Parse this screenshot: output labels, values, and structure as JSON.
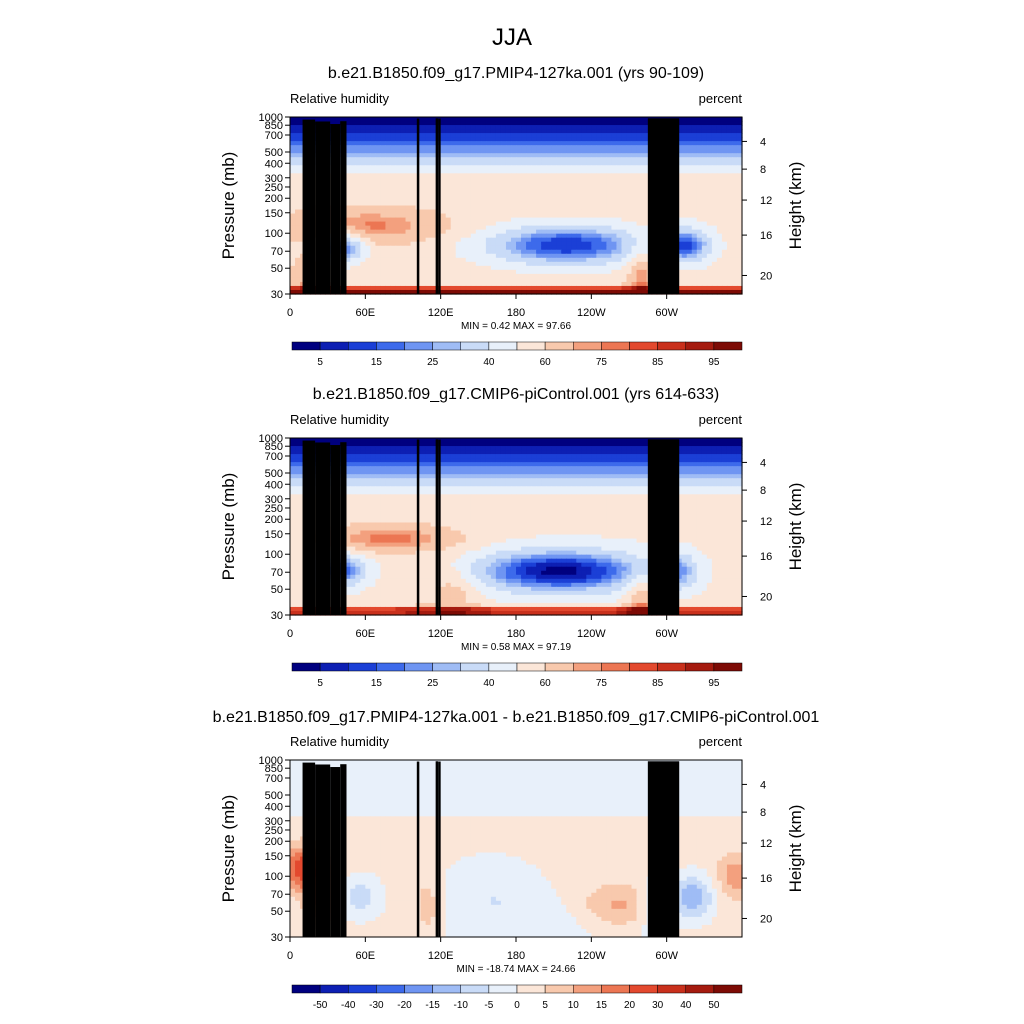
{
  "main_title": "JJA",
  "chart_data": [
    {
      "type": "heatmap",
      "title": "b.e21.B1850.f09_g17.PMIP4-127ka.001 (yrs 90-109)",
      "left_label": "Relative humidity",
      "right_label": "percent",
      "ylabel": "Pressure (mb)",
      "ylabel_right": "Height (km)",
      "xticks": [
        "0",
        "60E",
        "120E",
        "180",
        "120W",
        "60W"
      ],
      "pressure_ticks": [
        "30",
        "50",
        "70",
        "100",
        "150",
        "200",
        "250",
        "300",
        "400",
        "500",
        "700",
        "850",
        "1000"
      ],
      "height_ticks": [
        "20",
        "16",
        "12",
        "8",
        "4"
      ],
      "min_max_text": "MIN =   0.42  MAX =  97.66",
      "min": 0.42,
      "max": 97.66,
      "colorbar_labels": [
        "5",
        "15",
        "25",
        "40",
        "60",
        "75",
        "85",
        "95"
      ],
      "colors": [
        "#00007f",
        "#0d1fb3",
        "#1b3fd6",
        "#3d6aeb",
        "#6f95f2",
        "#9fbcf5",
        "#c9dbf7",
        "#e8f0fa",
        "#fbe6d8",
        "#f8c9ad",
        "#f3a07e",
        "#ec7653",
        "#e3492e",
        "#c9301c",
        "#a51b0f",
        "#7d0b05"
      ]
    },
    {
      "type": "heatmap",
      "title": "b.e21.B1850.f09_g17.CMIP6-piControl.001 (yrs 614-633)",
      "left_label": "Relative humidity",
      "right_label": "percent",
      "ylabel": "Pressure (mb)",
      "ylabel_right": "Height (km)",
      "xticks": [
        "0",
        "60E",
        "120E",
        "180",
        "120W",
        "60W"
      ],
      "pressure_ticks": [
        "30",
        "50",
        "70",
        "100",
        "150",
        "200",
        "250",
        "300",
        "400",
        "500",
        "700",
        "850",
        "1000"
      ],
      "height_ticks": [
        "20",
        "16",
        "12",
        "8",
        "4"
      ],
      "min_max_text": "MIN =   0.58  MAX =  97.19",
      "min": 0.58,
      "max": 97.19,
      "colorbar_labels": [
        "5",
        "15",
        "25",
        "40",
        "60",
        "75",
        "85",
        "95"
      ],
      "colors": [
        "#00007f",
        "#0d1fb3",
        "#1b3fd6",
        "#3d6aeb",
        "#6f95f2",
        "#9fbcf5",
        "#c9dbf7",
        "#e8f0fa",
        "#fbe6d8",
        "#f8c9ad",
        "#f3a07e",
        "#ec7653",
        "#e3492e",
        "#c9301c",
        "#a51b0f",
        "#7d0b05"
      ]
    },
    {
      "type": "heatmap",
      "title": "b.e21.B1850.f09_g17.PMIP4-127ka.001 - b.e21.B1850.f09_g17.CMIP6-piControl.001",
      "left_label": "Relative humidity",
      "right_label": "percent",
      "ylabel": "Pressure (mb)",
      "ylabel_right": "Height (km)",
      "xticks": [
        "0",
        "60E",
        "120E",
        "180",
        "120W",
        "60W"
      ],
      "pressure_ticks": [
        "30",
        "50",
        "70",
        "100",
        "150",
        "200",
        "250",
        "300",
        "400",
        "500",
        "700",
        "850",
        "1000"
      ],
      "height_ticks": [
        "20",
        "16",
        "12",
        "8",
        "4"
      ],
      "min_max_text": "MIN = -18.74  MAX =  24.66",
      "min": -18.74,
      "max": 24.66,
      "colorbar_labels": [
        "-50",
        "-40",
        "-30",
        "-20",
        "-15",
        "-10",
        "-5",
        "0",
        "5",
        "10",
        "15",
        "20",
        "30",
        "40",
        "50"
      ],
      "colors": [
        "#00007f",
        "#0d1fb3",
        "#1b3fd6",
        "#3d6aeb",
        "#6f95f2",
        "#9fbcf5",
        "#c9dbf7",
        "#e8f0fa",
        "#fbe6d8",
        "#f8c9ad",
        "#f3a07e",
        "#ec7653",
        "#e3492e",
        "#c9301c",
        "#a51b0f",
        "#7d0b05"
      ]
    }
  ]
}
